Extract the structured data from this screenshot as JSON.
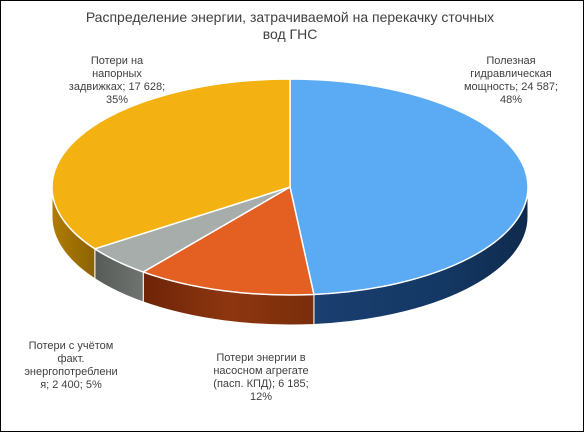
{
  "chart_data": {
    "type": "pie",
    "style": "3d",
    "title_line1": "Распределение энергии, затрачиваемой на перекачку сточных",
    "title_line2": "вод ГНС",
    "slices": [
      {
        "label": "Полезная гидравлическая мощность",
        "value": 24587,
        "percent": 48,
        "color": "#5aaaf4",
        "label_lines": [
          "Полезная",
          "гидравлическая",
          "мощность; 24 587;",
          "48%"
        ]
      },
      {
        "label": "Потери энергии в насосном агрегате (пасп. КПД)",
        "value": 6185,
        "percent": 12,
        "color": "#e45f22",
        "label_lines": [
          "Потери энергии в",
          "насосном агрегате",
          "(пасп. КПД); 6 185;",
          "12%"
        ]
      },
      {
        "label": "Потери с учётом факт. энергопотреблений",
        "value": 2400,
        "percent": 5,
        "color": "#a7adaa",
        "label_lines": [
          "Потери с учётом",
          "факт.",
          "энергопотреблени",
          "я; 2 400; 5%"
        ]
      },
      {
        "label": "Потери на напорных задвижках",
        "value": 17628,
        "percent": 35,
        "color": "#f4b212",
        "label_lines": [
          "Потери на",
          "напорных",
          "задвижках; 17 628;",
          "35%"
        ]
      }
    ]
  }
}
